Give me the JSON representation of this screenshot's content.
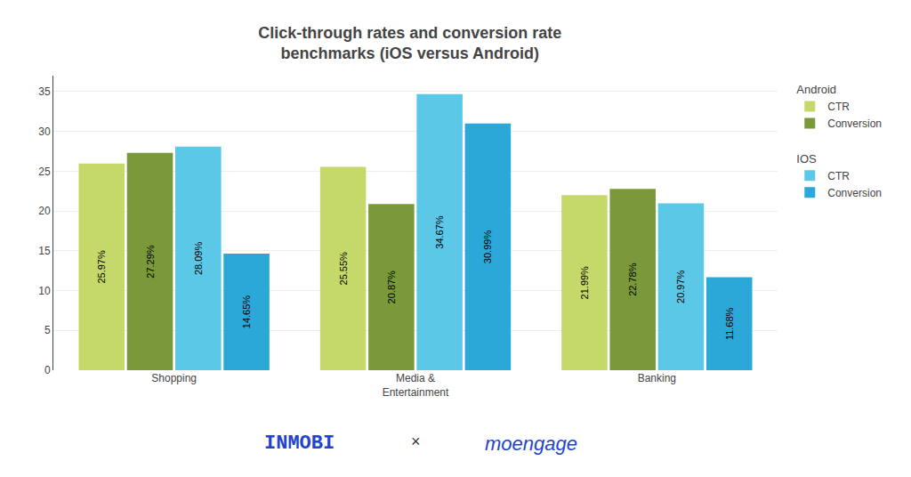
{
  "chart_data": {
    "type": "bar",
    "title": "Click-through rates and conversion rate\nbenchmarks (iOS versus Android)",
    "categories": [
      "Shopping",
      "Media &\nEntertainment",
      "Banking"
    ],
    "series": [
      {
        "name": "CTR",
        "group": "Android",
        "color": "#c5d96a",
        "values": [
          25.97,
          25.55,
          21.99
        ],
        "value_labels": [
          "25.97%",
          "25.55%",
          "21.99%"
        ]
      },
      {
        "name": "Conversion",
        "group": "Android",
        "color": "#7a9a3a",
        "values": [
          27.29,
          20.87,
          22.78
        ],
        "value_labels": [
          "27.29%",
          "20.87%",
          "22.78%"
        ]
      },
      {
        "name": "CTR",
        "group": "IOS",
        "color": "#5bc8e8",
        "values": [
          28.09,
          34.67,
          20.97
        ],
        "value_labels": [
          "28.09%",
          "34.67%",
          "20.97%"
        ]
      },
      {
        "name": "Conversion",
        "group": "IOS",
        "color": "#2ba8d8",
        "values": [
          14.65,
          30.99,
          11.68
        ],
        "value_labels": [
          "14.65%",
          "30.99%",
          "11.68%"
        ]
      }
    ],
    "ylim": [
      0,
      37
    ],
    "yticks": [
      0,
      5,
      10,
      15,
      20,
      25,
      30,
      35
    ],
    "grid": true,
    "data_labels": true,
    "legend": "right",
    "annotations": [
      "INMOBI",
      "×",
      "moengage"
    ]
  }
}
